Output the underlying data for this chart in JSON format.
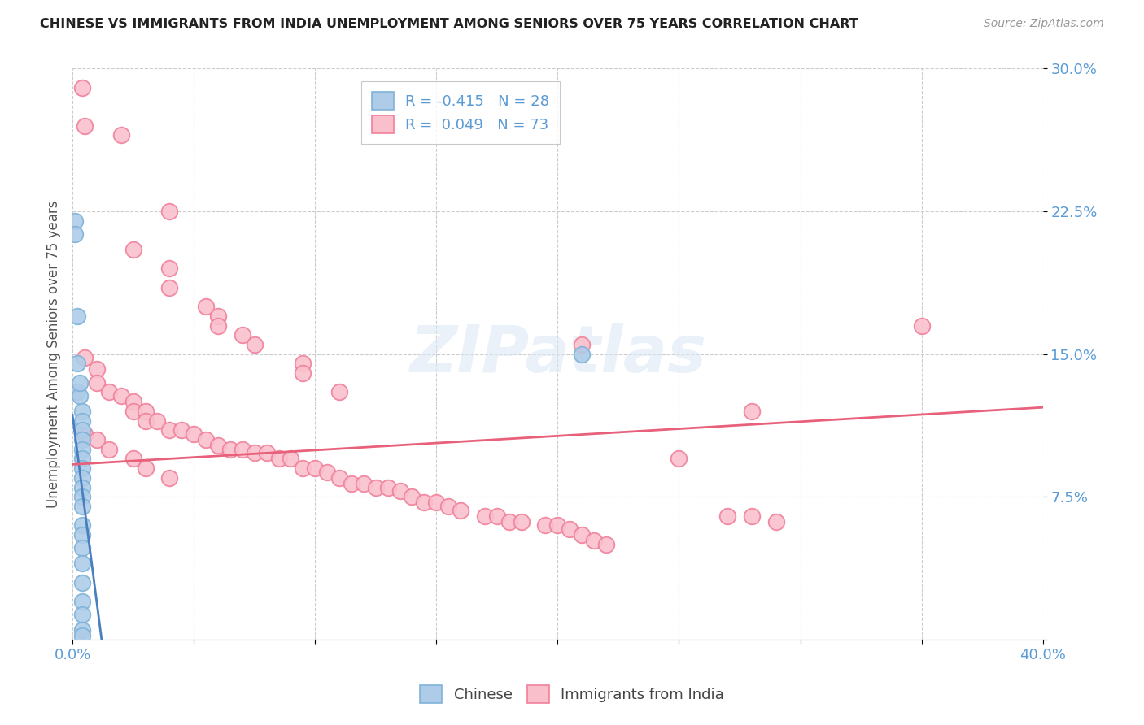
{
  "title": "CHINESE VS IMMIGRANTS FROM INDIA UNEMPLOYMENT AMONG SENIORS OVER 75 YEARS CORRELATION CHART",
  "source": "Source: ZipAtlas.com",
  "ylabel": "Unemployment Among Seniors over 75 years",
  "ylim": [
    0,
    0.3
  ],
  "xlim": [
    0,
    0.4
  ],
  "yticks": [
    0.0,
    0.075,
    0.15,
    0.225,
    0.3
  ],
  "ytick_labels": [
    "",
    "7.5%",
    "15.0%",
    "22.5%",
    "30.0%"
  ],
  "xticks": [
    0.0,
    0.05,
    0.1,
    0.15,
    0.2,
    0.25,
    0.3,
    0.35,
    0.4
  ],
  "xtick_labels": [
    "0.0%",
    "",
    "",
    "",
    "",
    "",
    "",
    "",
    "40.0%"
  ],
  "legend_entries": [
    {
      "label": "R = -0.415   N = 28"
    },
    {
      "label": "R =  0.049   N = 73"
    }
  ],
  "watermark": "ZIPatlas",
  "chinese_color": "#aecce8",
  "india_color": "#f9c0cc",
  "chinese_edge": "#7fb3d9",
  "india_edge": "#f0809a",
  "trendline_chinese_color": "#4a7fbf",
  "trendline_india_color": "#e8607a",
  "chinese_trendline": [
    [
      0.0,
      0.118
    ],
    [
      0.012,
      0.0
    ]
  ],
  "india_trendline": [
    [
      0.0,
      0.092
    ],
    [
      0.4,
      0.122
    ]
  ],
  "chinese_scatter": [
    [
      0.001,
      0.22
    ],
    [
      0.001,
      0.213
    ],
    [
      0.002,
      0.17
    ],
    [
      0.002,
      0.145
    ],
    [
      0.002,
      0.13
    ],
    [
      0.003,
      0.128
    ],
    [
      0.003,
      0.135
    ],
    [
      0.004,
      0.12
    ],
    [
      0.004,
      0.115
    ],
    [
      0.004,
      0.11
    ],
    [
      0.004,
      0.105
    ],
    [
      0.004,
      0.1
    ],
    [
      0.004,
      0.095
    ],
    [
      0.004,
      0.09
    ],
    [
      0.004,
      0.085
    ],
    [
      0.004,
      0.08
    ],
    [
      0.004,
      0.075
    ],
    [
      0.004,
      0.07
    ],
    [
      0.004,
      0.06
    ],
    [
      0.004,
      0.055
    ],
    [
      0.004,
      0.048
    ],
    [
      0.004,
      0.04
    ],
    [
      0.004,
      0.03
    ],
    [
      0.004,
      0.02
    ],
    [
      0.004,
      0.013
    ],
    [
      0.004,
      0.005
    ],
    [
      0.004,
      0.002
    ],
    [
      0.21,
      0.15
    ]
  ],
  "india_scatter": [
    [
      0.004,
      0.29
    ],
    [
      0.02,
      0.265
    ],
    [
      0.005,
      0.27
    ],
    [
      0.04,
      0.225
    ],
    [
      0.04,
      0.195
    ],
    [
      0.025,
      0.205
    ],
    [
      0.04,
      0.185
    ],
    [
      0.055,
      0.175
    ],
    [
      0.06,
      0.17
    ],
    [
      0.06,
      0.165
    ],
    [
      0.07,
      0.16
    ],
    [
      0.075,
      0.155
    ],
    [
      0.095,
      0.145
    ],
    [
      0.095,
      0.14
    ],
    [
      0.11,
      0.13
    ],
    [
      0.005,
      0.148
    ],
    [
      0.01,
      0.142
    ],
    [
      0.01,
      0.135
    ],
    [
      0.015,
      0.13
    ],
    [
      0.02,
      0.128
    ],
    [
      0.025,
      0.125
    ],
    [
      0.025,
      0.12
    ],
    [
      0.03,
      0.12
    ],
    [
      0.03,
      0.115
    ],
    [
      0.035,
      0.115
    ],
    [
      0.04,
      0.11
    ],
    [
      0.045,
      0.11
    ],
    [
      0.05,
      0.108
    ],
    [
      0.055,
      0.105
    ],
    [
      0.06,
      0.102
    ],
    [
      0.065,
      0.1
    ],
    [
      0.07,
      0.1
    ],
    [
      0.075,
      0.098
    ],
    [
      0.08,
      0.098
    ],
    [
      0.085,
      0.095
    ],
    [
      0.09,
      0.095
    ],
    [
      0.095,
      0.09
    ],
    [
      0.1,
      0.09
    ],
    [
      0.105,
      0.088
    ],
    [
      0.11,
      0.085
    ],
    [
      0.115,
      0.082
    ],
    [
      0.12,
      0.082
    ],
    [
      0.125,
      0.08
    ],
    [
      0.13,
      0.08
    ],
    [
      0.135,
      0.078
    ],
    [
      0.14,
      0.075
    ],
    [
      0.145,
      0.072
    ],
    [
      0.15,
      0.072
    ],
    [
      0.155,
      0.07
    ],
    [
      0.16,
      0.068
    ],
    [
      0.17,
      0.065
    ],
    [
      0.175,
      0.065
    ],
    [
      0.18,
      0.062
    ],
    [
      0.185,
      0.062
    ],
    [
      0.195,
      0.06
    ],
    [
      0.2,
      0.06
    ],
    [
      0.205,
      0.058
    ],
    [
      0.21,
      0.055
    ],
    [
      0.215,
      0.052
    ],
    [
      0.22,
      0.05
    ],
    [
      0.005,
      0.108
    ],
    [
      0.01,
      0.105
    ],
    [
      0.015,
      0.1
    ],
    [
      0.025,
      0.095
    ],
    [
      0.03,
      0.09
    ],
    [
      0.04,
      0.085
    ],
    [
      0.28,
      0.12
    ],
    [
      0.21,
      0.155
    ],
    [
      0.35,
      0.165
    ],
    [
      0.25,
      0.095
    ],
    [
      0.27,
      0.065
    ],
    [
      0.28,
      0.065
    ],
    [
      0.29,
      0.062
    ]
  ]
}
